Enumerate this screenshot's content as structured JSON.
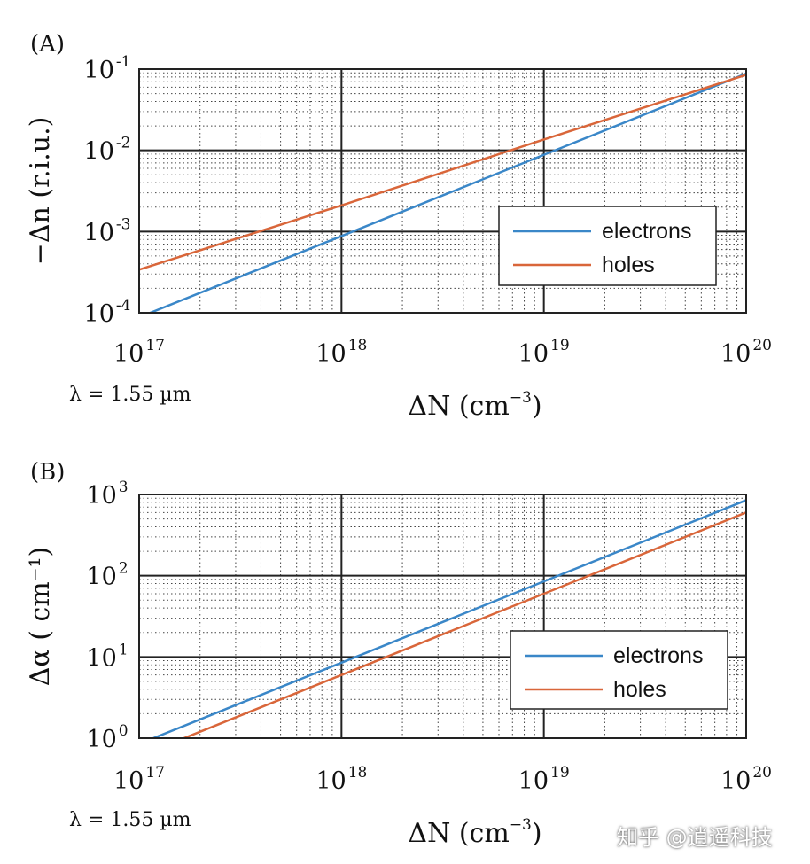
{
  "chart_data": [
    {
      "type": "line",
      "panel_label": "(A)",
      "xlabel": "ΔN (cm⁻³)",
      "xlabel_parts": {
        "main": "ΔN (cm",
        "sup": "−3",
        "close": ")"
      },
      "ylabel": "−Δn (r.i.u.)",
      "xscale": "log",
      "yscale": "log",
      "xlim": [
        1e+17,
        1e+20
      ],
      "ylim": [
        0.0001,
        0.1
      ],
      "x_ticks": [
        {
          "base": "10",
          "exp": "17"
        },
        {
          "base": "10",
          "exp": "18"
        },
        {
          "base": "10",
          "exp": "19"
        },
        {
          "base": "10",
          "exp": "20"
        }
      ],
      "y_ticks": [
        {
          "base": "10",
          "exp": "-4"
        },
        {
          "base": "10",
          "exp": "-3"
        },
        {
          "base": "10",
          "exp": "-2"
        },
        {
          "base": "10",
          "exp": "-1"
        }
      ],
      "grid": true,
      "legend_position": "lower-right",
      "annotation": "λ = 1.55 µm",
      "series": [
        {
          "name": "electrons",
          "color": "#3a87c8",
          "x": [
            1e+17,
            1e+18,
            1e+19,
            1e+20
          ],
          "y": [
            8.8e-05,
            0.00088,
            0.0088,
            0.088
          ]
        },
        {
          "name": "holes",
          "color": "#d9663a",
          "x": [
            1e+17,
            1e+18,
            1e+19,
            1e+20
          ],
          "y": [
            0.00034,
            0.0021,
            0.0136,
            0.085
          ]
        }
      ]
    },
    {
      "type": "line",
      "panel_label": "(B)",
      "xlabel": "ΔN (cm⁻³)",
      "xlabel_parts": {
        "main": "ΔN (cm",
        "sup": "−3",
        "close": ")"
      },
      "ylabel": "Δα ( cm⁻¹)",
      "xscale": "log",
      "yscale": "log",
      "xlim": [
        1e+17,
        1e+20
      ],
      "ylim": [
        1,
        1000
      ],
      "x_ticks": [
        {
          "base": "10",
          "exp": "17"
        },
        {
          "base": "10",
          "exp": "18"
        },
        {
          "base": "10",
          "exp": "19"
        },
        {
          "base": "10",
          "exp": "20"
        }
      ],
      "y_ticks": [
        {
          "base": "10",
          "exp": "0"
        },
        {
          "base": "10",
          "exp": "1"
        },
        {
          "base": "10",
          "exp": "2"
        },
        {
          "base": "10",
          "exp": "3"
        }
      ],
      "grid": true,
      "legend_position": "lower-right",
      "annotation": "λ = 1.55 µm",
      "series": [
        {
          "name": "electrons",
          "color": "#3a87c8",
          "x": [
            1e+17,
            1e+18,
            1e+19,
            1e+20
          ],
          "y": [
            0.85,
            8.5,
            85,
            850
          ]
        },
        {
          "name": "holes",
          "color": "#d9663a",
          "x": [
            1e+17,
            1e+18,
            1e+19,
            1e+20
          ],
          "y": [
            0.6,
            6.0,
            60,
            600
          ]
        }
      ]
    }
  ],
  "watermark": "知乎 @逍遥科技"
}
